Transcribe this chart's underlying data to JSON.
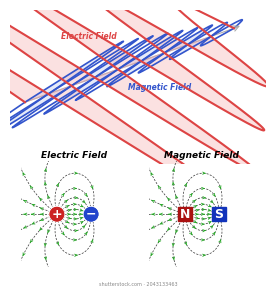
{
  "bg_color": "#ffffff",
  "wave_color_electric": "#dd4444",
  "wave_color_magnetic": "#3355cc",
  "wave_fill_electric": "#f5aaaa",
  "wave_fill_magnetic": "#aabbee",
  "axis_color": "#aaaaaa",
  "field_line_color": "#333333",
  "arrow_field_color": "#22aa22",
  "plus_color": "#cc2222",
  "minus_color": "#2244cc",
  "N_color": "#aa1111",
  "S_color": "#1133bb",
  "label_electric_wave": "Electric Field",
  "label_magnetic_wave": "Magnetic Field",
  "label_electric_bottom": "Electric Field",
  "label_magnetic_bottom": "Magnetic Field",
  "watermark": "shutterstock.com · 2043133463"
}
